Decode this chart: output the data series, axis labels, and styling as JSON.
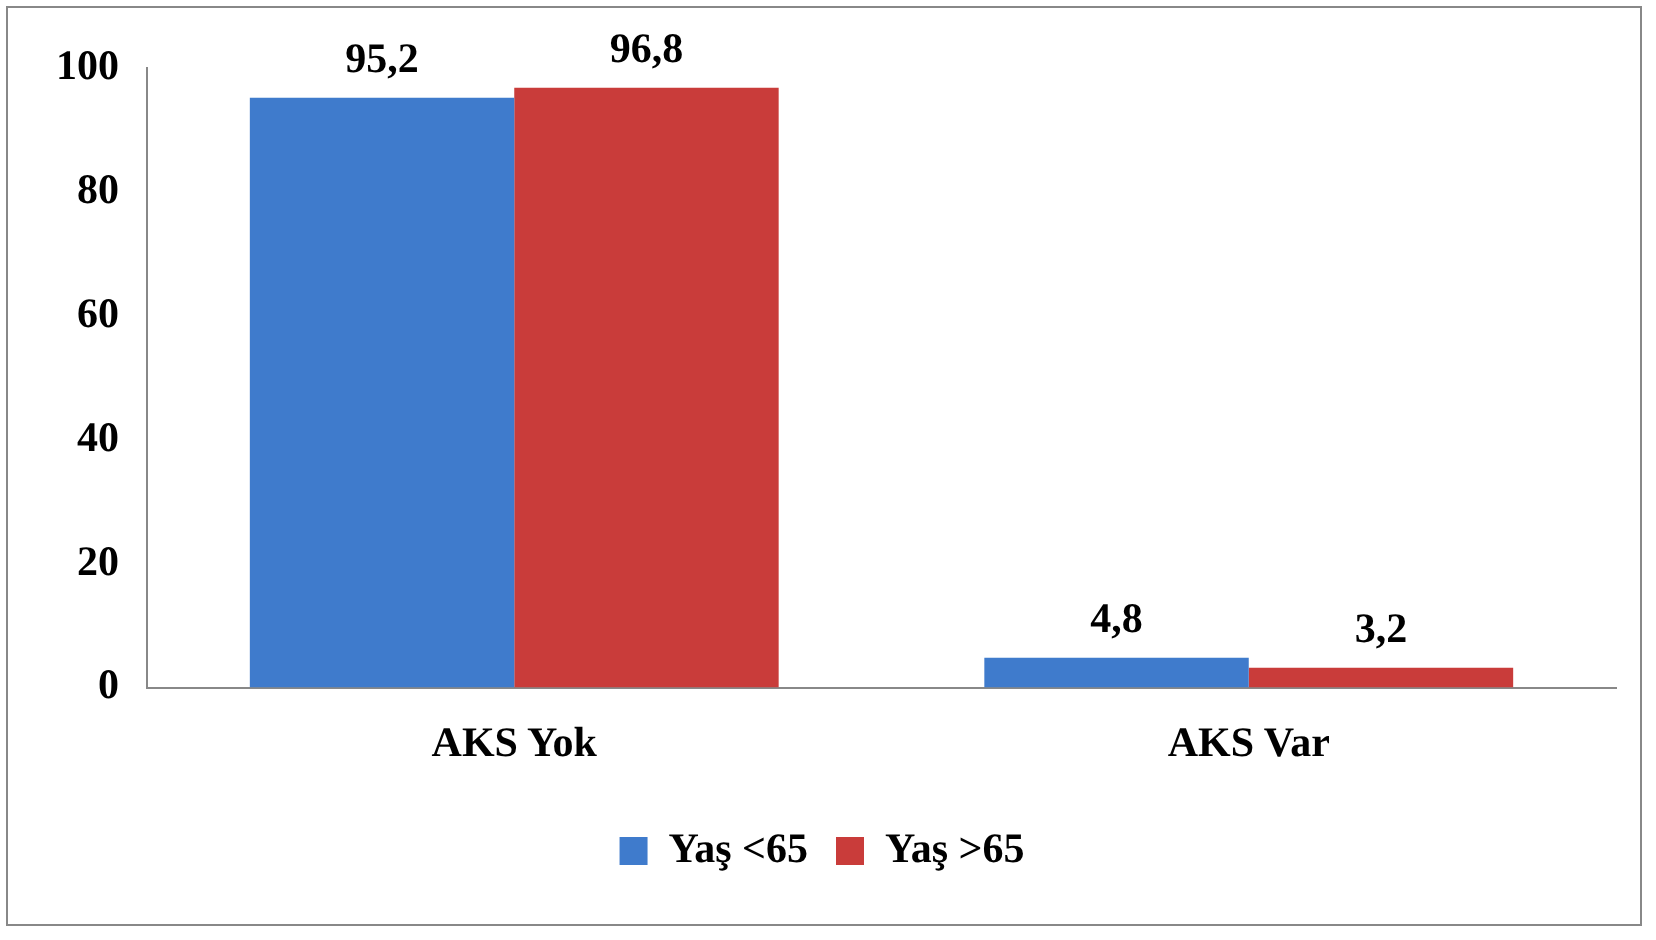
{
  "chart_data": {
    "type": "bar",
    "categories": [
      "AKS Yok",
      "AKS Var"
    ],
    "series": [
      {
        "name": "Yaş <65",
        "color": "#3f7bcc",
        "values": [
          95.2,
          4.8
        ],
        "value_labels": [
          "95,2",
          "4,8"
        ]
      },
      {
        "name": "Yaş >65",
        "color": "#c93c3a",
        "values": [
          96.8,
          3.2
        ],
        "value_labels": [
          "96,8",
          "3,2"
        ]
      }
    ],
    "ylim": [
      0,
      100
    ],
    "yticks": [
      0,
      20,
      40,
      60,
      80,
      100
    ],
    "grid": false,
    "legend": "bottom"
  }
}
